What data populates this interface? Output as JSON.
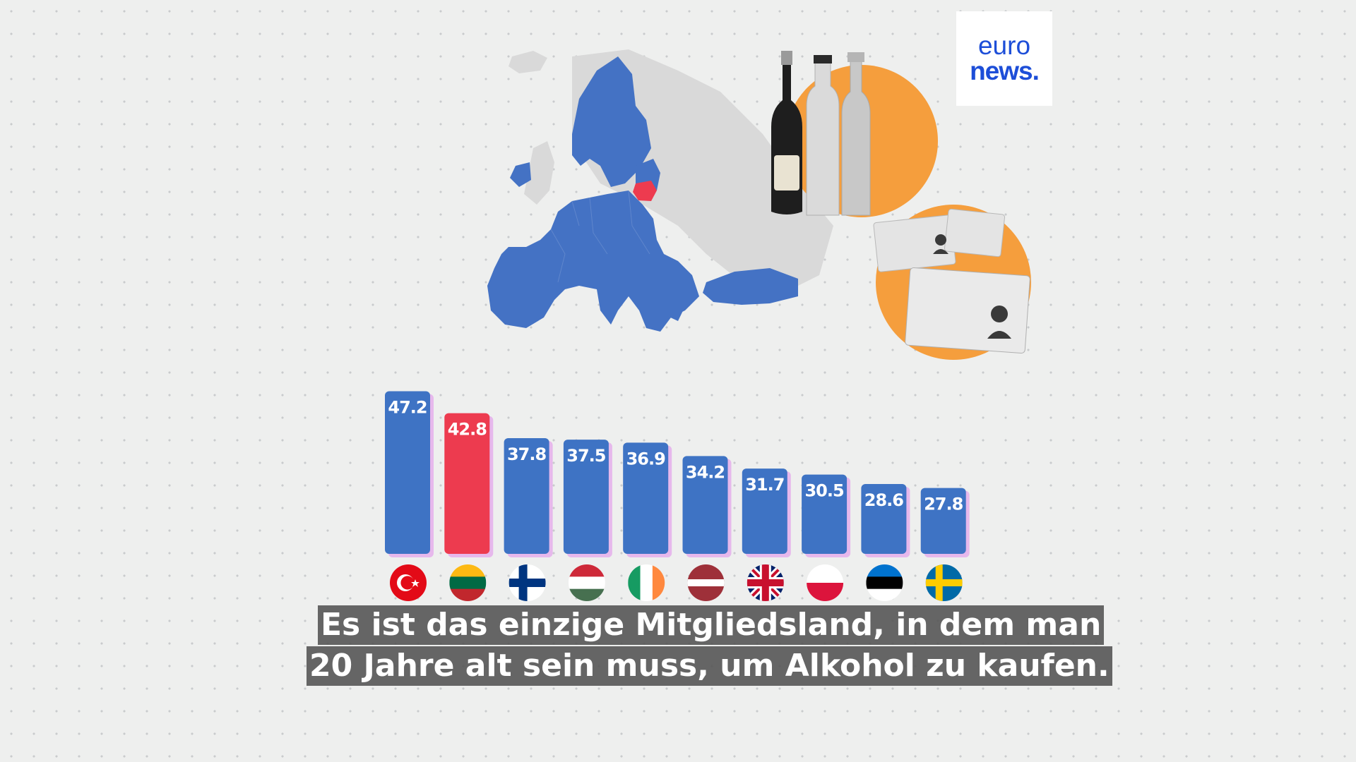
{
  "brand": {
    "logo_line1": "euro",
    "logo_line2": "news.",
    "color": "#1d4ed8"
  },
  "colors": {
    "bar": "#3e73c4",
    "highlight": "#ed3b4f",
    "bar_shadow": "#e6b8ec",
    "map_eu": "#4472c4",
    "map_other": "#d9d9d9",
    "illustration_circle": "#f59e3d"
  },
  "chart_data": {
    "type": "bar",
    "categories": [
      "Turkey",
      "Lithuania",
      "Finland",
      "Hungary",
      "Ireland",
      "Latvia",
      "United Kingdom",
      "Poland",
      "Estonia",
      "Sweden"
    ],
    "values": [
      47.2,
      42.8,
      37.8,
      37.5,
      36.9,
      34.2,
      31.7,
      30.5,
      28.6,
      27.8
    ],
    "value_labels": [
      "47.2",
      "42.8",
      "37.8",
      "37.5",
      "36.9",
      "34.2",
      "31.7",
      "30.5",
      "28.6",
      "27.8"
    ],
    "highlight_index": 1,
    "flag_icons": [
      "turkey-flag-icon",
      "lithuania-flag-icon",
      "finland-flag-icon",
      "hungary-flag-icon",
      "ireland-flag-icon",
      "latvia-flag-icon",
      "uk-flag-icon",
      "poland-flag-icon",
      "estonia-flag-icon",
      "sweden-flag-icon"
    ],
    "title": "",
    "xlabel": "",
    "ylabel": "",
    "ylim": [
      0,
      50
    ],
    "grid": false,
    "legend": "none"
  },
  "subtitle": {
    "line1": "Es ist das einzige Mitgliedsland, in dem man",
    "line2": "20 Jahre alt sein muss, um Alkohol zu kaufen."
  }
}
